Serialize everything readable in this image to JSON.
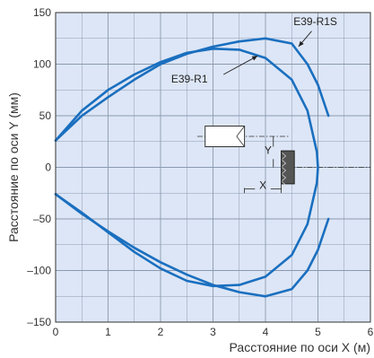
{
  "chart_data": {
    "type": "line",
    "title": "",
    "xlabel": "Расстояние по оси X (м)",
    "ylabel": "Расстояние по оси Y (мм)",
    "xlim": [
      0,
      6
    ],
    "ylim": [
      -150,
      150
    ],
    "x_ticks": [
      0,
      1,
      2,
      3,
      4,
      5,
      6
    ],
    "y_ticks": [
      -150,
      -100,
      -50,
      0,
      50,
      100,
      150
    ],
    "x_tick_labels": [
      "0",
      "1",
      "2",
      "3",
      "4",
      "5",
      "6"
    ],
    "y_tick_labels": [
      "–150",
      "–100",
      "–50",
      "0",
      "50",
      "100",
      "150"
    ],
    "grid": true,
    "background_color": "#dde6f6",
    "grid_color": "#8a9ab0",
    "line_color": "#1a6fbf",
    "series": [
      {
        "name": "E39-R1",
        "points": [
          [
            0,
            26
          ],
          [
            0.5,
            55
          ],
          [
            1,
            75
          ],
          [
            1.5,
            90
          ],
          [
            2,
            102
          ],
          [
            2.5,
            111
          ],
          [
            3,
            115
          ],
          [
            3.5,
            114
          ],
          [
            4,
            106
          ],
          [
            4.5,
            85
          ],
          [
            4.8,
            55
          ],
          [
            4.98,
            15
          ],
          [
            5,
            0
          ],
          [
            4.98,
            -15
          ],
          [
            4.8,
            -55
          ],
          [
            4.5,
            -85
          ],
          [
            4,
            -106
          ],
          [
            3.5,
            -114
          ],
          [
            3,
            -115
          ],
          [
            2.5,
            -110
          ],
          [
            2,
            -98
          ],
          [
            1.5,
            -82
          ],
          [
            1,
            -63
          ],
          [
            0.5,
            -44
          ],
          [
            0,
            -26
          ]
        ]
      },
      {
        "name": "E39-R1S",
        "points": [
          [
            0,
            26
          ],
          [
            0.5,
            50
          ],
          [
            1,
            68
          ],
          [
            1.5,
            85
          ],
          [
            2,
            100
          ],
          [
            2.5,
            110
          ],
          [
            3,
            117
          ],
          [
            3.5,
            122
          ],
          [
            4,
            125
          ],
          [
            4.5,
            120
          ],
          [
            4.8,
            100
          ],
          [
            5,
            80
          ],
          [
            5.2,
            50
          ],
          [
            null,
            null
          ],
          [
            5.2,
            -50
          ],
          [
            5,
            -80
          ],
          [
            4.8,
            -100
          ],
          [
            4.5,
            -118
          ],
          [
            4,
            -125
          ],
          [
            3.5,
            -121
          ],
          [
            3,
            -114
          ],
          [
            2.5,
            -104
          ],
          [
            2,
            -92
          ],
          [
            1.5,
            -78
          ],
          [
            1,
            -62
          ],
          [
            0.5,
            -45
          ],
          [
            0,
            -26
          ]
        ]
      }
    ],
    "annotations": [
      {
        "text": "E39-R1S",
        "x": 4.95,
        "y": 138
      },
      {
        "text": "E39-R1",
        "x": 2.55,
        "y": 82
      },
      {
        "text": "Y",
        "x": 4.05,
        "y": 13
      },
      {
        "text": "X",
        "x": 3.95,
        "y": -21
      }
    ]
  }
}
